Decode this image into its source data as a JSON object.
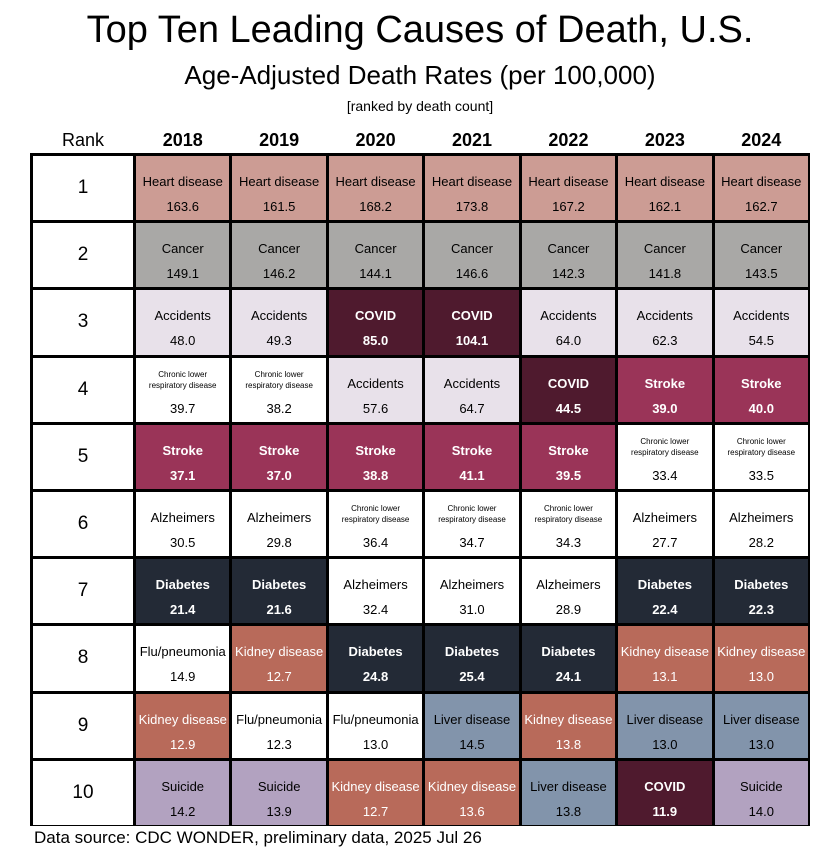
{
  "title": "Top Ten Leading Causes of Death, U.S.",
  "subtitle": "Age-Adjusted Death Rates (per 100,000)",
  "note": "[ranked by death count]",
  "source": "Data source: CDC WONDER, preliminary data, 2025 Jul 26",
  "rank_header": "Rank",
  "colors": {
    "heart": "#cc9c94",
    "cancer": "#a9a8a6",
    "accidents": "#e8e1ea",
    "covid": "#4f1a2e",
    "stroke": "#9a3458",
    "clrd": "#ffffff",
    "alz": "#ffffff",
    "diabetes": "#232a36",
    "flu": "#ffffff",
    "kidney": "#b86a5a",
    "liver": "#8294ab",
    "suicide": "#b2a2c0"
  },
  "chart_data": {
    "type": "table",
    "title": "Top Ten Leading Causes of Death, U.S.",
    "subtitle": "Age-Adjusted Death Rates (per 100,000)",
    "years": [
      "2018",
      "2019",
      "2020",
      "2021",
      "2022",
      "2023",
      "2024"
    ],
    "ranks": [
      "1",
      "2",
      "3",
      "4",
      "5",
      "6",
      "7",
      "8",
      "9",
      "10"
    ],
    "rows": [
      [
        {
          "cause": "Heart disease",
          "key": "heart",
          "rate": "163.6"
        },
        {
          "cause": "Heart disease",
          "key": "heart",
          "rate": "161.5"
        },
        {
          "cause": "Heart disease",
          "key": "heart",
          "rate": "168.2"
        },
        {
          "cause": "Heart disease",
          "key": "heart",
          "rate": "173.8"
        },
        {
          "cause": "Heart disease",
          "key": "heart",
          "rate": "167.2"
        },
        {
          "cause": "Heart disease",
          "key": "heart",
          "rate": "162.1"
        },
        {
          "cause": "Heart disease",
          "key": "heart",
          "rate": "162.7"
        }
      ],
      [
        {
          "cause": "Cancer",
          "key": "cancer",
          "rate": "149.1"
        },
        {
          "cause": "Cancer",
          "key": "cancer",
          "rate": "146.2"
        },
        {
          "cause": "Cancer",
          "key": "cancer",
          "rate": "144.1"
        },
        {
          "cause": "Cancer",
          "key": "cancer",
          "rate": "146.6"
        },
        {
          "cause": "Cancer",
          "key": "cancer",
          "rate": "142.3"
        },
        {
          "cause": "Cancer",
          "key": "cancer",
          "rate": "141.8"
        },
        {
          "cause": "Cancer",
          "key": "cancer",
          "rate": "143.5"
        }
      ],
      [
        {
          "cause": "Accidents",
          "key": "accidents",
          "rate": "48.0"
        },
        {
          "cause": "Accidents",
          "key": "accidents",
          "rate": "49.3"
        },
        {
          "cause": "COVID",
          "key": "covid",
          "rate": "85.0"
        },
        {
          "cause": "COVID",
          "key": "covid",
          "rate": "104.1"
        },
        {
          "cause": "Accidents",
          "key": "accidents",
          "rate": "64.0"
        },
        {
          "cause": "Accidents",
          "key": "accidents",
          "rate": "62.3"
        },
        {
          "cause": "Accidents",
          "key": "accidents",
          "rate": "54.5"
        }
      ],
      [
        {
          "cause": "Chronic lower respiratory disease",
          "key": "clrd",
          "rate": "39.7"
        },
        {
          "cause": "Chronic lower respiratory disease",
          "key": "clrd",
          "rate": "38.2"
        },
        {
          "cause": "Accidents",
          "key": "accidents",
          "rate": "57.6"
        },
        {
          "cause": "Accidents",
          "key": "accidents",
          "rate": "64.7"
        },
        {
          "cause": "COVID",
          "key": "covid",
          "rate": "44.5"
        },
        {
          "cause": "Stroke",
          "key": "stroke",
          "rate": "39.0"
        },
        {
          "cause": "Stroke",
          "key": "stroke",
          "rate": "40.0"
        }
      ],
      [
        {
          "cause": "Stroke",
          "key": "stroke",
          "rate": "37.1"
        },
        {
          "cause": "Stroke",
          "key": "stroke",
          "rate": "37.0"
        },
        {
          "cause": "Stroke",
          "key": "stroke",
          "rate": "38.8"
        },
        {
          "cause": "Stroke",
          "key": "stroke",
          "rate": "41.1"
        },
        {
          "cause": "Stroke",
          "key": "stroke",
          "rate": "39.5"
        },
        {
          "cause": "Chronic lower respiratory disease",
          "key": "clrd",
          "rate": "33.4"
        },
        {
          "cause": "Chronic lower respiratory disease",
          "key": "clrd",
          "rate": "33.5"
        }
      ],
      [
        {
          "cause": "Alzheimers",
          "key": "alz",
          "rate": "30.5"
        },
        {
          "cause": "Alzheimers",
          "key": "alz",
          "rate": "29.8"
        },
        {
          "cause": "Chronic lower respiratory disease",
          "key": "clrd",
          "rate": "36.4"
        },
        {
          "cause": "Chronic lower respiratory disease",
          "key": "clrd",
          "rate": "34.7"
        },
        {
          "cause": "Chronic lower respiratory disease",
          "key": "clrd",
          "rate": "34.3"
        },
        {
          "cause": "Alzheimers",
          "key": "alz",
          "rate": "27.7"
        },
        {
          "cause": "Alzheimers",
          "key": "alz",
          "rate": "28.2"
        }
      ],
      [
        {
          "cause": "Diabetes",
          "key": "diabetes",
          "rate": "21.4"
        },
        {
          "cause": "Diabetes",
          "key": "diabetes",
          "rate": "21.6"
        },
        {
          "cause": "Alzheimers",
          "key": "alz",
          "rate": "32.4"
        },
        {
          "cause": "Alzheimers",
          "key": "alz",
          "rate": "31.0"
        },
        {
          "cause": "Alzheimers",
          "key": "alz",
          "rate": "28.9"
        },
        {
          "cause": "Diabetes",
          "key": "diabetes",
          "rate": "22.4"
        },
        {
          "cause": "Diabetes",
          "key": "diabetes",
          "rate": "22.3"
        }
      ],
      [
        {
          "cause": "Flu/pneumonia",
          "key": "flu",
          "rate": "14.9"
        },
        {
          "cause": "Kidney disease",
          "key": "kidney",
          "rate": "12.7"
        },
        {
          "cause": "Diabetes",
          "key": "diabetes",
          "rate": "24.8"
        },
        {
          "cause": "Diabetes",
          "key": "diabetes",
          "rate": "25.4"
        },
        {
          "cause": "Diabetes",
          "key": "diabetes",
          "rate": "24.1"
        },
        {
          "cause": "Kidney disease",
          "key": "kidney",
          "rate": "13.1"
        },
        {
          "cause": "Kidney disease",
          "key": "kidney",
          "rate": "13.0"
        }
      ],
      [
        {
          "cause": "Kidney disease",
          "key": "kidney",
          "rate": "12.9"
        },
        {
          "cause": "Flu/pneumonia",
          "key": "flu",
          "rate": "12.3"
        },
        {
          "cause": "Flu/pneumonia",
          "key": "flu",
          "rate": "13.0"
        },
        {
          "cause": "Liver disease",
          "key": "liver",
          "rate": "14.5"
        },
        {
          "cause": "Kidney disease",
          "key": "kidney",
          "rate": "13.8"
        },
        {
          "cause": "Liver disease",
          "key": "liver",
          "rate": "13.0"
        },
        {
          "cause": "Liver disease",
          "key": "liver",
          "rate": "13.0"
        }
      ],
      [
        {
          "cause": "Suicide",
          "key": "suicide",
          "rate": "14.2"
        },
        {
          "cause": "Suicide",
          "key": "suicide",
          "rate": "13.9"
        },
        {
          "cause": "Kidney disease",
          "key": "kidney",
          "rate": "12.7"
        },
        {
          "cause": "Kidney disease",
          "key": "kidney",
          "rate": "13.6"
        },
        {
          "cause": "Liver disease",
          "key": "liver",
          "rate": "13.8"
        },
        {
          "cause": "COVID",
          "key": "covid",
          "rate": "11.9"
        },
        {
          "cause": "Suicide",
          "key": "suicide",
          "rate": "14.0"
        }
      ]
    ]
  }
}
